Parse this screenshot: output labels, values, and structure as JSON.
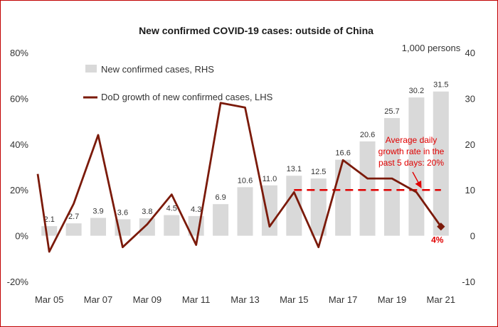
{
  "chart_data": {
    "type": "bar+line",
    "title": "New confirmed COVID-19 cases: outside of China",
    "right_axis_unit": "1,000 persons",
    "categories": [
      "Mar 05",
      "Mar 06",
      "Mar 07",
      "Mar 08",
      "Mar 09",
      "Mar 10",
      "Mar 11",
      "Mar 12",
      "Mar 13",
      "Mar 14",
      "Mar 15",
      "Mar 16",
      "Mar 17",
      "Mar 18",
      "Mar 19",
      "Mar 20",
      "Mar 21"
    ],
    "x_tick_labels": [
      "Mar 05",
      "Mar 07",
      "Mar 09",
      "Mar 11",
      "Mar 13",
      "Mar 15",
      "Mar 17",
      "Mar 19",
      "Mar 21"
    ],
    "series": [
      {
        "name": "New confirmed cases, RHS",
        "type": "bar",
        "axis": "right",
        "values": [
          2.1,
          2.7,
          3.9,
          3.6,
          3.8,
          4.5,
          4.3,
          6.9,
          10.6,
          11.0,
          13.1,
          12.5,
          16.6,
          20.6,
          25.7,
          30.2,
          31.5
        ],
        "labels": [
          "2.1",
          "2.7",
          "3.9",
          "3.6",
          "3.8",
          "4.5",
          "4.3",
          "6.9",
          "10.6",
          "11.0",
          "13.1",
          "12.5",
          "16.6",
          "20.6",
          "25.7",
          "30.2",
          "31.5"
        ],
        "color": "#d9d9d9"
      },
      {
        "name": "DoD growth of new confirmed cases, LHS",
        "type": "line",
        "axis": "left",
        "x": [
          -0.55,
          0,
          1,
          2,
          3,
          4,
          5,
          6,
          7,
          8,
          9,
          10,
          11,
          12,
          13,
          14,
          15,
          16
        ],
        "values": [
          27,
          -7,
          14,
          44,
          -5,
          5,
          18,
          -4,
          58,
          56,
          4,
          19,
          -5,
          33,
          25,
          25,
          19,
          4
        ],
        "color": "#7b1a0a"
      }
    ],
    "left_axis": {
      "min": -20,
      "max": 80,
      "step": 20,
      "tick_labels": [
        "-20%",
        "0%",
        "20%",
        "40%",
        "60%",
        "80%"
      ]
    },
    "right_axis": {
      "min": -10,
      "max": 40,
      "step": 10,
      "tick_labels": [
        "-10",
        "0",
        "10",
        "20",
        "30",
        "40"
      ]
    },
    "reference_line": {
      "value": 20,
      "axis": "left",
      "from": "Mar 15",
      "to": "Mar 21",
      "color": "#e00000",
      "style": "dashed"
    },
    "annotation": {
      "lines": [
        "Average daily",
        "growth rate in the",
        "past 5 days: 20%"
      ],
      "color": "#e00000"
    },
    "last_point_label": "4%",
    "legend_position": "top-left",
    "grid": false
  }
}
